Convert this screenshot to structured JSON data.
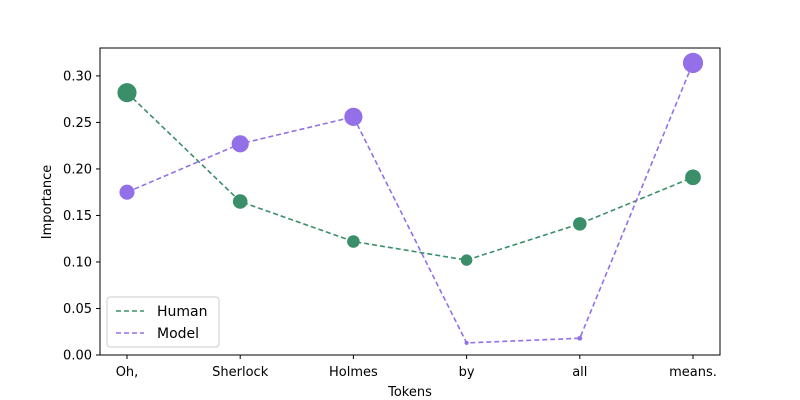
{
  "chart_data": {
    "type": "line",
    "xlabel": "Tokens",
    "ylabel": "Importance",
    "categories": [
      "Oh,",
      "Sherlock",
      "Holmes",
      "by",
      "all",
      "means."
    ],
    "ylim": [
      0.0,
      0.33
    ],
    "yticks": [
      0.0,
      0.05,
      0.1,
      0.15,
      0.2,
      0.25,
      0.3
    ],
    "ytick_labels": [
      "0.00",
      "0.05",
      "0.10",
      "0.15",
      "0.20",
      "0.25",
      "0.30"
    ],
    "grid": false,
    "legend_position": "lower-left",
    "marker_size_encodes_value": true,
    "line_style": "dashed",
    "series": [
      {
        "name": "Human",
        "color": "#3a8f6a",
        "values": [
          0.282,
          0.165,
          0.122,
          0.102,
          0.141,
          0.191
        ]
      },
      {
        "name": "Model",
        "color": "#9370e8",
        "values": [
          0.175,
          0.227,
          0.256,
          0.013,
          0.018,
          0.314
        ]
      }
    ]
  }
}
